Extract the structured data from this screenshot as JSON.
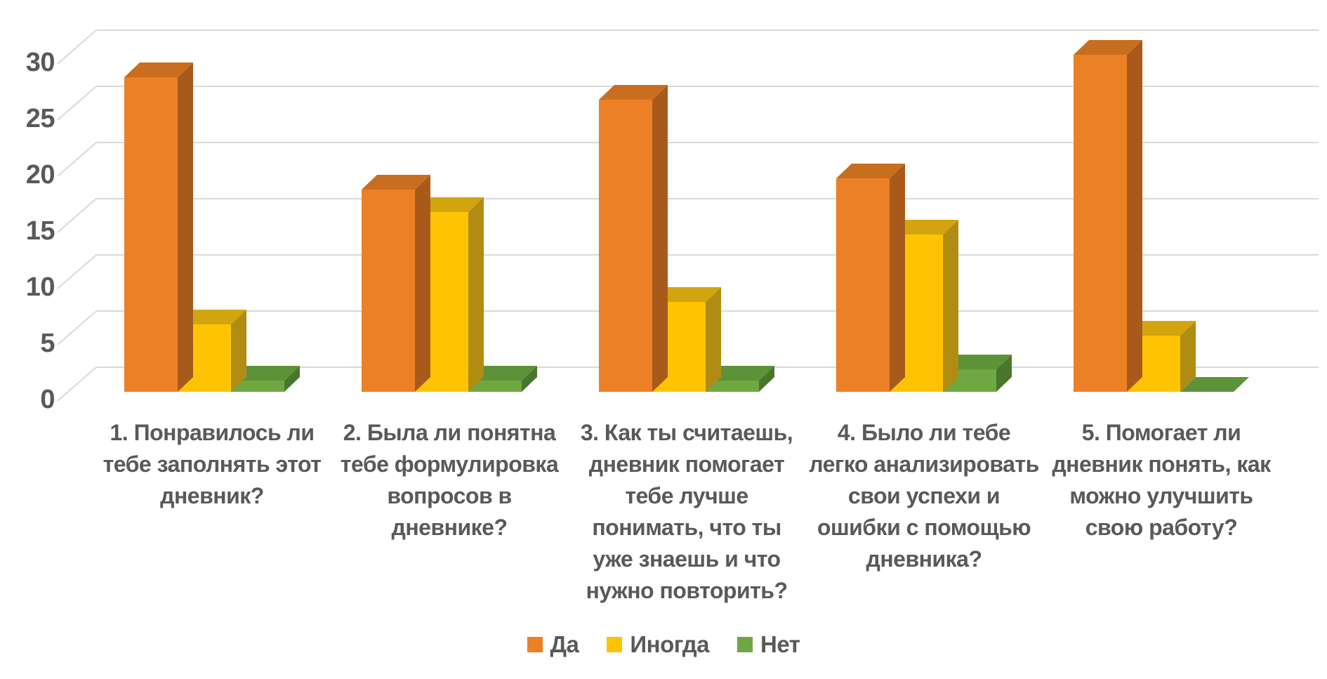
{
  "chart_data": {
    "type": "bar",
    "variant": "3d-clustered-column",
    "title": "",
    "xlabel": "",
    "ylabel": "",
    "ylim": [
      0,
      30
    ],
    "ytick_step": 5,
    "yticks": [
      0,
      5,
      10,
      15,
      20,
      25,
      30
    ],
    "grid": true,
    "legend_position": "bottom",
    "categories": [
      {
        "label": "1. Понравилось ли тебе заполнять этот дневник?",
        "lines": [
          "1. Понравилось ли",
          "тебе заполнять этот",
          "дневник?"
        ]
      },
      {
        "label": "2. Была ли понятна тебе формулировка вопросов в дневнике?",
        "lines": [
          "2. Была ли понятна",
          "тебе формулировка",
          "вопросов в",
          "дневнике?"
        ]
      },
      {
        "label": "3. Как ты считаешь, дневник помогает тебе лучше понимать, что ты уже знаешь и что нужно повторить?",
        "lines": [
          "3. Как ты считаешь,",
          "дневник помогает",
          "тебе лучше",
          "понимать, что ты",
          "уже знаешь и что",
          "нужно повторить?"
        ]
      },
      {
        "label": "4. Было ли тебе легко анализировать свои успехи и ошибки с помощью дневника?",
        "lines": [
          "4. Было ли тебе",
          "легко анализировать",
          "свои успехи и",
          "ошибки с помощью",
          "дневника?"
        ]
      },
      {
        "label": "5. Помогает ли дневник понять, как можно улучшить свою работу?",
        "lines": [
          "5. Помогает ли",
          "дневник понять, как",
          "можно улучшить",
          "свою работу?"
        ]
      }
    ],
    "series": [
      {
        "name": "Да",
        "values": [
          28,
          18,
          26,
          19,
          30
        ],
        "color": "#EC8026",
        "color_top": "#C96E1F",
        "color_side": "#A85A1B"
      },
      {
        "name": "Иногда",
        "values": [
          6,
          16,
          8,
          14,
          5
        ],
        "color": "#FEC404",
        "color_top": "#D2A50F",
        "color_side": "#B08C13"
      },
      {
        "name": "Нет",
        "values": [
          1,
          1,
          1,
          2,
          0
        ],
        "color": "#6FA842",
        "color_top": "#5C9338",
        "color_side": "#4A762C"
      }
    ]
  },
  "style": {
    "background": "#FFFFFF",
    "text_color": "#595959",
    "grid_color": "#D8D8D8"
  }
}
